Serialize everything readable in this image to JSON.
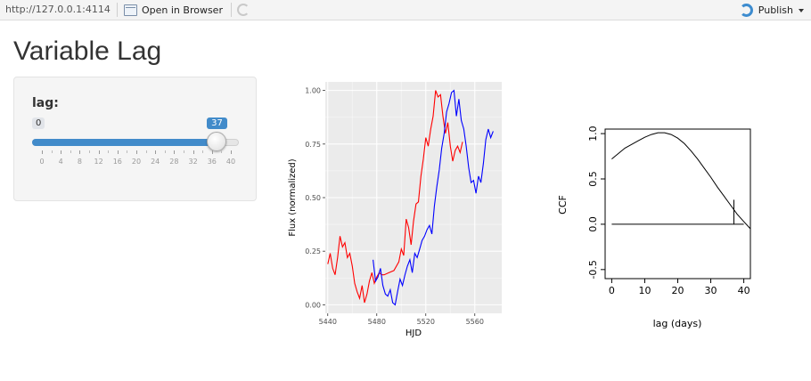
{
  "toolbar": {
    "url": "http://127.0.0.1:4114",
    "open_in_browser": "Open in Browser",
    "publish": "Publish"
  },
  "page": {
    "title": "Variable Lag"
  },
  "slider": {
    "label": "lag:",
    "min": 0,
    "max": 40,
    "value": 37,
    "min_label": "0",
    "value_label": "37",
    "tick_labels": [
      "0",
      "4",
      "8",
      "12",
      "16",
      "20",
      "24",
      "28",
      "32",
      "36",
      "40"
    ]
  },
  "chart_data": [
    {
      "type": "line",
      "title": "",
      "xlabel": "HJD",
      "ylabel": "Flux (normalized)",
      "xlim": [
        5438,
        5582
      ],
      "ylim": [
        -0.04,
        1.04
      ],
      "x_ticks": [
        "5440",
        "5480",
        "5520",
        "5560"
      ],
      "y_ticks": [
        "0.00",
        "0.25",
        "0.50",
        "0.75",
        "1.00"
      ],
      "grid": true,
      "series": [
        {
          "color": "#ff0000",
          "points": [
            [
              5440,
              0.19
            ],
            [
              5442,
              0.24
            ],
            [
              5444,
              0.17
            ],
            [
              5446,
              0.14
            ],
            [
              5448,
              0.22
            ],
            [
              5450,
              0.32
            ],
            [
              5452,
              0.27
            ],
            [
              5454,
              0.29
            ],
            [
              5456,
              0.22
            ],
            [
              5458,
              0.24
            ],
            [
              5460,
              0.18
            ],
            [
              5462,
              0.1
            ],
            [
              5464,
              0.06
            ],
            [
              5466,
              0.03
            ],
            [
              5468,
              0.09
            ],
            [
              5470,
              0.01
            ],
            [
              5472,
              0.05
            ],
            [
              5474,
              0.11
            ],
            [
              5476,
              0.15
            ],
            [
              5478,
              0.1
            ],
            [
              5480,
              0.13
            ],
            [
              5482,
              0.15
            ],
            [
              5484,
              0.14
            ],
            [
              5486,
              0.14
            ],
            [
              5490,
              0.15
            ],
            [
              5494,
              0.16
            ],
            [
              5498,
              0.2
            ],
            [
              5500,
              0.26
            ],
            [
              5502,
              0.23
            ],
            [
              5504,
              0.4
            ],
            [
              5506,
              0.36
            ],
            [
              5508,
              0.28
            ],
            [
              5510,
              0.39
            ],
            [
              5512,
              0.47
            ],
            [
              5514,
              0.48
            ],
            [
              5516,
              0.6
            ],
            [
              5518,
              0.68
            ],
            [
              5520,
              0.78
            ],
            [
              5522,
              0.74
            ],
            [
              5524,
              0.82
            ],
            [
              5526,
              0.88
            ],
            [
              5528,
              1.0
            ],
            [
              5530,
              0.97
            ],
            [
              5532,
              0.98
            ],
            [
              5534,
              0.88
            ],
            [
              5536,
              0.8
            ],
            [
              5538,
              0.85
            ],
            [
              5540,
              0.74
            ],
            [
              5542,
              0.67
            ],
            [
              5544,
              0.72
            ],
            [
              5546,
              0.74
            ],
            [
              5548,
              0.71
            ],
            [
              5550,
              0.76
            ]
          ]
        },
        {
          "color": "#0000ff",
          "points": [
            [
              5477,
              0.21
            ],
            [
              5479,
              0.11
            ],
            [
              5481,
              0.13
            ],
            [
              5483,
              0.17
            ],
            [
              5485,
              0.09
            ],
            [
              5487,
              0.05
            ],
            [
              5489,
              0.04
            ],
            [
              5491,
              0.07
            ],
            [
              5493,
              0.01
            ],
            [
              5495,
              0.0
            ],
            [
              5497,
              0.06
            ],
            [
              5499,
              0.12
            ],
            [
              5501,
              0.09
            ],
            [
              5503,
              0.14
            ],
            [
              5505,
              0.18
            ],
            [
              5507,
              0.21
            ],
            [
              5509,
              0.15
            ],
            [
              5511,
              0.24
            ],
            [
              5513,
              0.22
            ],
            [
              5515,
              0.26
            ],
            [
              5517,
              0.3
            ],
            [
              5519,
              0.32
            ],
            [
              5521,
              0.35
            ],
            [
              5523,
              0.37
            ],
            [
              5525,
              0.33
            ],
            [
              5527,
              0.46
            ],
            [
              5529,
              0.55
            ],
            [
              5531,
              0.63
            ],
            [
              5533,
              0.73
            ],
            [
              5535,
              0.8
            ],
            [
              5537,
              0.9
            ],
            [
              5539,
              0.94
            ],
            [
              5541,
              0.99
            ],
            [
              5543,
              1.0
            ],
            [
              5545,
              0.88
            ],
            [
              5547,
              0.96
            ],
            [
              5549,
              0.86
            ],
            [
              5551,
              0.82
            ],
            [
              5553,
              0.74
            ],
            [
              5555,
              0.64
            ],
            [
              5557,
              0.57
            ],
            [
              5559,
              0.58
            ],
            [
              5561,
              0.52
            ],
            [
              5563,
              0.6
            ],
            [
              5565,
              0.57
            ],
            [
              5567,
              0.66
            ],
            [
              5569,
              0.77
            ],
            [
              5571,
              0.82
            ],
            [
              5573,
              0.78
            ],
            [
              5575,
              0.81
            ]
          ]
        }
      ]
    },
    {
      "type": "line",
      "title": "",
      "xlabel": "lag (days)",
      "ylabel": "CCF",
      "xlim": [
        -2,
        42
      ],
      "ylim": [
        -0.6,
        1.05
      ],
      "x_ticks": [
        "0",
        "10",
        "20",
        "30",
        "40"
      ],
      "y_ticks": [
        "-0.5",
        "0.0",
        "0.5",
        "1.0"
      ],
      "grid": false,
      "ccf_curve": [
        [
          0,
          0.72
        ],
        [
          2,
          0.78
        ],
        [
          4,
          0.84
        ],
        [
          6,
          0.88
        ],
        [
          8,
          0.92
        ],
        [
          10,
          0.96
        ],
        [
          12,
          0.99
        ],
        [
          14,
          1.01
        ],
        [
          16,
          1.01
        ],
        [
          18,
          0.99
        ],
        [
          20,
          0.95
        ],
        [
          22,
          0.89
        ],
        [
          24,
          0.81
        ],
        [
          26,
          0.72
        ],
        [
          28,
          0.62
        ],
        [
          30,
          0.52
        ],
        [
          32,
          0.41
        ],
        [
          34,
          0.31
        ],
        [
          36,
          0.21
        ],
        [
          38,
          0.11
        ],
        [
          40,
          0.03
        ],
        [
          42,
          -0.05
        ]
      ],
      "zero_line": [
        [
          0,
          0.0
        ],
        [
          40,
          0.0
        ]
      ],
      "lag_marker": {
        "x": 37,
        "y_top": 0.27,
        "y_bottom": 0.0
      }
    }
  ]
}
